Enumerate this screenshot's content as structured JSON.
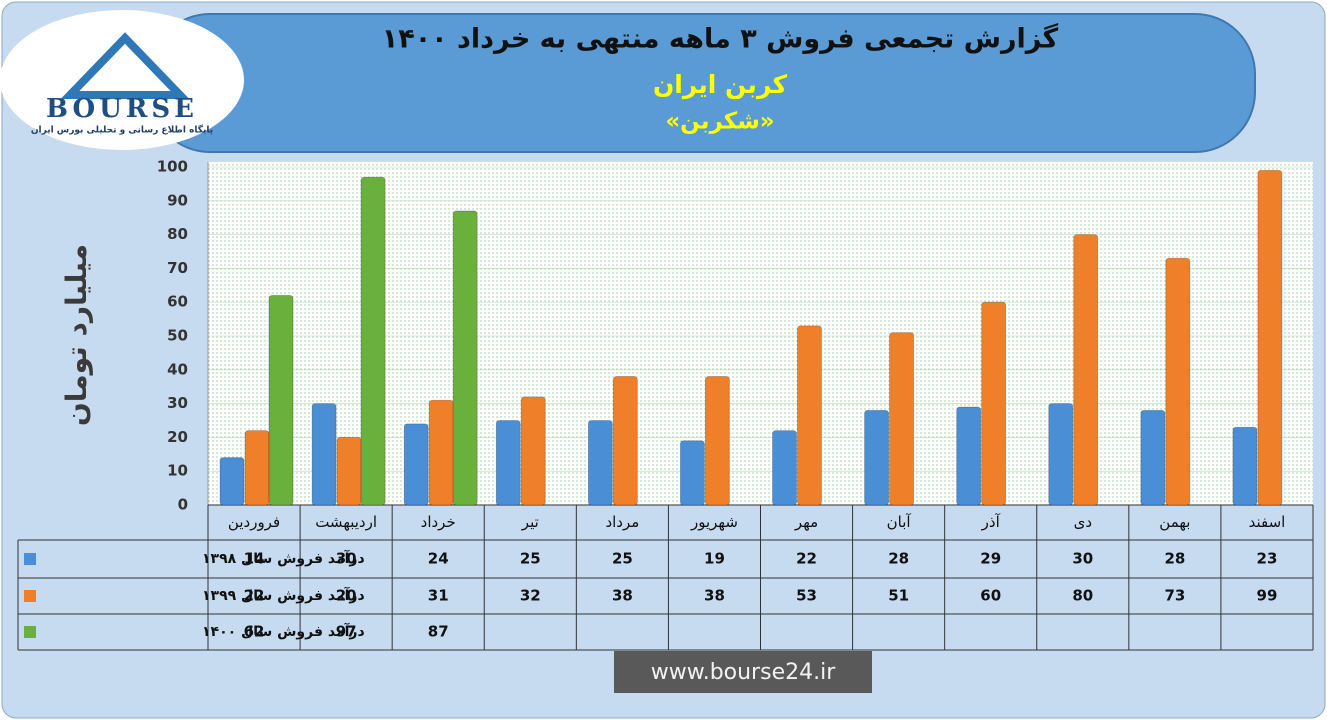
{
  "chart_data": {
    "type": "bar",
    "title": "گزارش تجمعی فروش ۳ ماهه منتهی به خرداد ۱۴۰۰",
    "subtitle": "کربن ایران",
    "symbol": "«شکربن»",
    "y_label": "میلیارد تومان",
    "logo_text": "BOURSE",
    "logo_caption": "پایگاه اطلاع رسانی و تحلیلی بورس ایران",
    "website": "www.bourse24.ir",
    "categories": [
      "فروردین",
      "اردیبهشت",
      "خرداد",
      "تیر",
      "مرداد",
      "شهریور",
      "مهر",
      "آبان",
      "آذر",
      "دی",
      "بهمن",
      "اسفند"
    ],
    "series": [
      {
        "name": "درآمد فروش سال ۱۳۹۸",
        "color": "#4a8fd6",
        "values": [
          14,
          30,
          24,
          25,
          25,
          19,
          22,
          28,
          29,
          30,
          28,
          23
        ]
      },
      {
        "name": "درآمد فروش سال ۱۳۹۹",
        "color": "#f07f2a",
        "values": [
          22,
          20,
          31,
          32,
          38,
          38,
          53,
          51,
          60,
          80,
          73,
          99
        ]
      },
      {
        "name": "درآمد فروش سال ۱۴۰۰",
        "color": "#6ab03c",
        "values": [
          62,
          97,
          87,
          null,
          null,
          null,
          null,
          null,
          null,
          null,
          null,
          null
        ]
      }
    ],
    "ylim": [
      0,
      100
    ],
    "yticks": [
      0,
      10,
      20,
      30,
      40,
      50,
      60,
      70,
      80,
      90,
      100
    ],
    "grid": true
  }
}
